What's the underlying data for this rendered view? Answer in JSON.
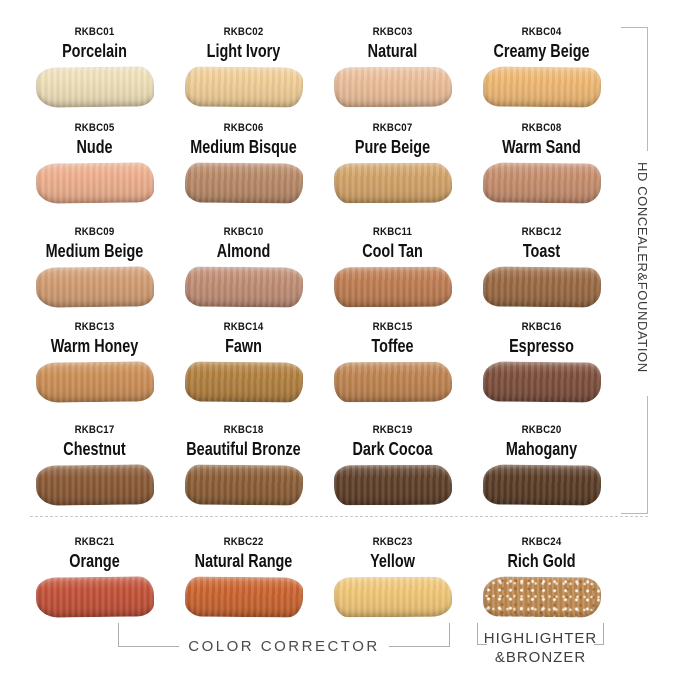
{
  "chart_data": {
    "type": "table",
    "description": "Makeup shade swatch chart: 24 smear swatches in a 4x6 grid, each with a product code and shade name, grouped by bracket annotations.",
    "group_labels": {
      "right_bracket": "HD CONCEALER&FOUNDATION",
      "bottom_left_bracket": "COLOR CORRECTOR",
      "bottom_right_bracket_line1": "HIGHLIGHTER",
      "bottom_right_bracket_line2": "&BRONZER"
    },
    "swatches": [
      {
        "code": "RKBC01",
        "name": "Porcelain",
        "color": "#f1e1ba",
        "group": "HD CONCEALER&FOUNDATION"
      },
      {
        "code": "RKBC02",
        "name": "Light Ivory",
        "color": "#f2cf97",
        "group": "HD CONCEALER&FOUNDATION"
      },
      {
        "code": "RKBC03",
        "name": "Natural",
        "color": "#ecbf9b",
        "group": "HD CONCEALER&FOUNDATION"
      },
      {
        "code": "RKBC04",
        "name": "Creamy Beige",
        "color": "#f0b974",
        "group": "HD CONCEALER&FOUNDATION"
      },
      {
        "code": "RKBC05",
        "name": "Nude",
        "color": "#efb08e",
        "group": "HD CONCEALER&FOUNDATION"
      },
      {
        "code": "RKBC06",
        "name": "Medium Bisque",
        "color": "#b98a68",
        "group": "HD CONCEALER&FOUNDATION"
      },
      {
        "code": "RKBC07",
        "name": "Pure Beige",
        "color": "#d3a468",
        "group": "HD CONCEALER&FOUNDATION"
      },
      {
        "code": "RKBC08",
        "name": "Warm Sand",
        "color": "#c78e6e",
        "group": "HD CONCEALER&FOUNDATION"
      },
      {
        "code": "RKBC09",
        "name": "Medium Beige",
        "color": "#d39d73",
        "group": "HD CONCEALER&FOUNDATION"
      },
      {
        "code": "RKBC10",
        "name": "Almond",
        "color": "#c08e75",
        "group": "HD CONCEALER&FOUNDATION"
      },
      {
        "code": "RKBC11",
        "name": "Cool Tan",
        "color": "#bf7d52",
        "group": "HD CONCEALER&FOUNDATION"
      },
      {
        "code": "RKBC12",
        "name": "Toast",
        "color": "#9a6a44",
        "group": "HD CONCEALER&FOUNDATION"
      },
      {
        "code": "RKBC13",
        "name": "Warm Honey",
        "color": "#cd9057",
        "group": "HD CONCEALER&FOUNDATION"
      },
      {
        "code": "RKBC14",
        "name": "Fawn",
        "color": "#b2803f",
        "group": "HD CONCEALER&FOUNDATION"
      },
      {
        "code": "RKBC15",
        "name": "Toffee",
        "color": "#bf8450",
        "group": "HD CONCEALER&FOUNDATION"
      },
      {
        "code": "RKBC16",
        "name": "Espresso",
        "color": "#7d4f3c",
        "group": "HD CONCEALER&FOUNDATION"
      },
      {
        "code": "RKBC17",
        "name": "Chestnut",
        "color": "#8a5a36",
        "group": "HD CONCEALER&FOUNDATION"
      },
      {
        "code": "RKBC18",
        "name": "Beautiful Bronze",
        "color": "#8c5e37",
        "group": "HD CONCEALER&FOUNDATION"
      },
      {
        "code": "RKBC19",
        "name": "Dark Cocoa",
        "color": "#5f3f29",
        "group": "HD CONCEALER&FOUNDATION"
      },
      {
        "code": "RKBC20",
        "name": "Mahogany",
        "color": "#5a3d27",
        "group": "HD CONCEALER&FOUNDATION"
      },
      {
        "code": "RKBC21",
        "name": "Orange",
        "color": "#c35138",
        "group": "COLOR CORRECTOR"
      },
      {
        "code": "RKBC22",
        "name": "Natural Range",
        "color": "#cb6430",
        "group": "COLOR CORRECTOR"
      },
      {
        "code": "RKBC23",
        "name": "Yellow",
        "color": "#f2c878",
        "group": "COLOR CORRECTOR"
      },
      {
        "code": "RKBC24",
        "name": "Rich Gold",
        "color": "#bf8a52, sparkle finish",
        "group": "HIGHLIGHTER&BRONZER"
      }
    ]
  },
  "style": {
    "bracket_line_color": "#b8b8b8",
    "label_text_color": "#111111",
    "annotation_text_color": "#3e3e3e",
    "background": "#ffffff",
    "rich_gold_base": "#bf8a52"
  }
}
